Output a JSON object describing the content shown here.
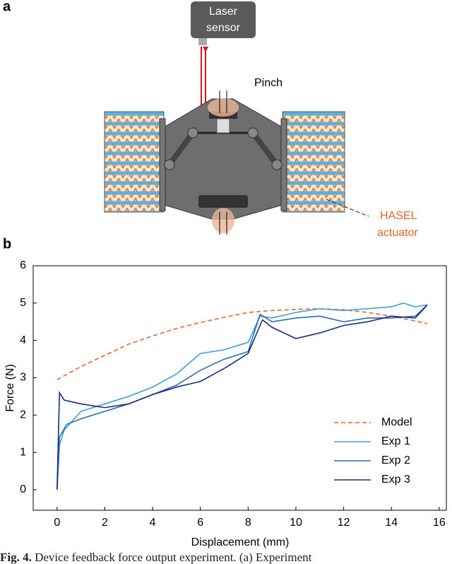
{
  "figure": {
    "panel_a": "a",
    "panel_b": "b",
    "labels": {
      "laser": "Laser",
      "sensor": "sensor",
      "pinch": "Pinch",
      "hasel": "HASEL",
      "actuator": "actuator"
    }
  },
  "chart_data": {
    "type": "line",
    "xlabel": "Displacement (mm)",
    "ylabel": "Force (N)",
    "xlim": [
      -1,
      16.3
    ],
    "ylim": [
      -0.55,
      6
    ],
    "xticks": [
      0,
      2,
      4,
      6,
      8,
      10,
      12,
      14,
      16
    ],
    "yticks": [
      0,
      1,
      2,
      3,
      4,
      5,
      6
    ],
    "legend": "lower right",
    "series": [
      {
        "name": "Model",
        "color": "#e8642c",
        "dashed": true,
        "x": [
          0,
          1,
          2,
          3,
          4,
          5,
          6,
          7,
          8,
          9,
          10,
          11,
          12,
          13,
          14,
          15,
          15.5
        ],
        "values": [
          2.95,
          3.3,
          3.6,
          3.9,
          4.12,
          4.32,
          4.48,
          4.62,
          4.75,
          4.8,
          4.83,
          4.85,
          4.82,
          4.75,
          4.65,
          4.52,
          4.45
        ]
      },
      {
        "name": "Exp 1",
        "color": "#3aa0d8",
        "x": [
          0,
          0.1,
          0.3,
          1,
          2,
          3,
          4,
          5,
          6,
          7,
          8,
          8.5,
          9,
          10,
          11,
          12,
          13,
          14,
          14.5,
          15,
          15.5
        ],
        "values": [
          0,
          1.2,
          1.6,
          2.1,
          2.3,
          2.5,
          2.75,
          3.1,
          3.65,
          3.75,
          3.95,
          4.65,
          4.6,
          4.75,
          4.85,
          4.8,
          4.85,
          4.9,
          5.0,
          4.9,
          4.95
        ]
      },
      {
        "name": "Exp 2",
        "color": "#2a6db5",
        "x": [
          0,
          0.1,
          0.4,
          1,
          2,
          3,
          4,
          5,
          6,
          7,
          8,
          8.5,
          9,
          10,
          11,
          12,
          13,
          14,
          15,
          15.5
        ],
        "values": [
          0,
          1.4,
          1.75,
          1.9,
          2.1,
          2.3,
          2.55,
          2.8,
          3.2,
          3.5,
          3.7,
          4.7,
          4.5,
          4.6,
          4.65,
          4.5,
          4.6,
          4.6,
          4.65,
          4.95
        ]
      },
      {
        "name": "Exp 3",
        "color": "#1a2a80",
        "x": [
          0,
          0.1,
          0.3,
          1,
          2,
          3,
          4,
          5,
          6,
          7,
          8,
          8.6,
          9,
          10,
          11,
          12,
          13,
          14,
          15,
          15.5
        ],
        "values": [
          0,
          2.6,
          2.4,
          2.3,
          2.2,
          2.3,
          2.55,
          2.75,
          2.9,
          3.25,
          3.65,
          4.55,
          4.35,
          4.05,
          4.2,
          4.4,
          4.5,
          4.65,
          4.6,
          4.95
        ]
      }
    ]
  },
  "caption": {
    "label": "Fig. 4.",
    "text": "Device feedback force output experiment. (a) Experiment"
  }
}
